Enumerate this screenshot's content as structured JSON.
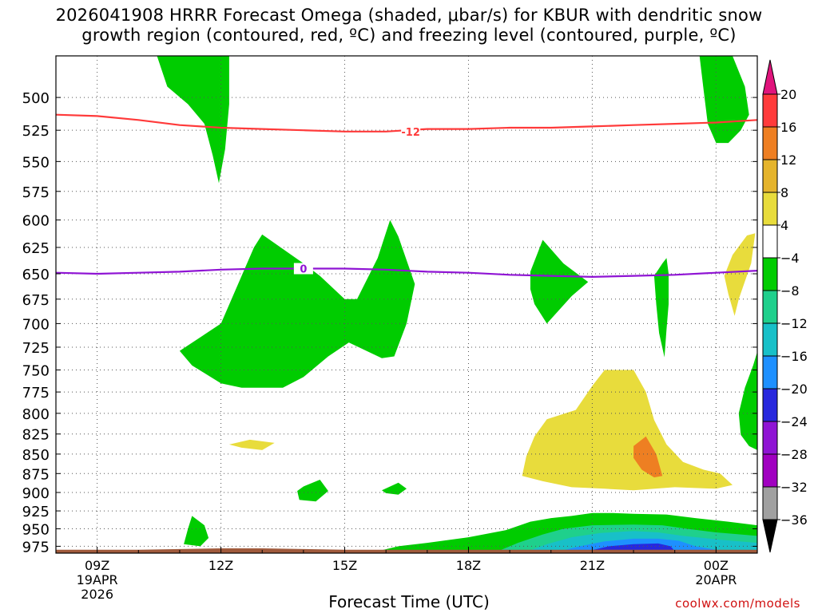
{
  "title": {
    "line1": "2026041908 HRRR Forecast Omega (shaded, μbar/s) for KBUR with dendritic snow",
    "line2": "growth region (contoured, red, ºC) and freezing level (contoured, purple, ºC)"
  },
  "credit": "coolwx.com/models",
  "chart_data": {
    "type": "heatmap",
    "xlabel": "Forecast Time (UTC)",
    "ylabel": "",
    "xlim": [
      8,
      25
    ],
    "ylim": [
      985,
      470
    ],
    "x_ticks": [
      {
        "x": 9,
        "lines": [
          "09Z",
          "19APR",
          "2026"
        ]
      },
      {
        "x": 12,
        "lines": [
          "12Z"
        ]
      },
      {
        "x": 15,
        "lines": [
          "15Z"
        ]
      },
      {
        "x": 18,
        "lines": [
          "18Z"
        ]
      },
      {
        "x": 21,
        "lines": [
          "21Z"
        ]
      },
      {
        "x": 24,
        "lines": [
          "00Z",
          "20APR"
        ]
      }
    ],
    "y_ticks": [
      500,
      525,
      550,
      575,
      600,
      625,
      650,
      675,
      700,
      725,
      750,
      775,
      800,
      825,
      850,
      875,
      900,
      925,
      950,
      975
    ],
    "grid": "dotted",
    "colorbar": {
      "labels": [
        "20",
        "16",
        "12",
        "8",
        "4",
        "−4",
        "−8",
        "−12",
        "−16",
        "−20",
        "−24",
        "−28",
        "−32",
        "−36"
      ],
      "bands": [
        {
          "range": [
            16,
            20
          ],
          "color": "#ff3a3a"
        },
        {
          "range": [
            12,
            16
          ],
          "color": "#ee7f22"
        },
        {
          "range": [
            8,
            12
          ],
          "color": "#e5b42c"
        },
        {
          "range": [
            4,
            8
          ],
          "color": "#e8dc3c"
        },
        {
          "range": [
            -4,
            4
          ],
          "color": "#ffffff"
        },
        {
          "range": [
            -8,
            -4
          ],
          "color": "#00cc00"
        },
        {
          "range": [
            -12,
            -8
          ],
          "color": "#1fd08c"
        },
        {
          "range": [
            -16,
            -12
          ],
          "color": "#18c0c8"
        },
        {
          "range": [
            -20,
            -16
          ],
          "color": "#1e90ff"
        },
        {
          "range": [
            -24,
            -20
          ],
          "color": "#2828dd"
        },
        {
          "range": [
            -28,
            -24
          ],
          "color": "#8f14d4"
        },
        {
          "range": [
            -32,
            -28
          ],
          "color": "#a000c0"
        },
        {
          "range": [
            -36,
            -32
          ],
          "color": "#a0a0a0"
        }
      ],
      "top_arrow_color": "#e0147c",
      "bottom_arrow_color": "#000000"
    },
    "contours": [
      {
        "name": "dendritic",
        "label": "-12",
        "label_at": [
          16.6,
          526
        ],
        "color": "#ff3a3a",
        "x": [
          8,
          9,
          10,
          11,
          12,
          13,
          14,
          15,
          16,
          17,
          18,
          19,
          20,
          21,
          22,
          23,
          24,
          25
        ],
        "y": [
          513,
          514,
          517,
          521,
          523,
          524,
          525,
          526,
          526,
          524,
          524,
          523,
          523,
          522,
          521,
          520,
          519,
          517
        ]
      },
      {
        "name": "freezing",
        "label": "0",
        "label_at": [
          14,
          645
        ],
        "color": "#8f14d4",
        "x": [
          8,
          9,
          10,
          11,
          12,
          13,
          14,
          15,
          16,
          17,
          18,
          19,
          20,
          21,
          22,
          23,
          24,
          25
        ],
        "y": [
          649,
          650,
          649,
          648,
          646,
          645,
          645,
          645,
          646,
          648,
          649,
          651,
          652,
          653,
          652,
          651,
          649,
          647
        ]
      }
    ],
    "regions": [
      {
        "color": "#00cc00",
        "points": [
          [
            10.45,
            470
          ],
          [
            10.7,
            492
          ],
          [
            11.2,
            505
          ],
          [
            11.6,
            520
          ],
          [
            11.8,
            545
          ],
          [
            11.95,
            568
          ],
          [
            12.1,
            540
          ],
          [
            12.2,
            505
          ],
          [
            12.2,
            470
          ]
        ]
      },
      {
        "color": "#00cc00",
        "points": [
          [
            24.4,
            470
          ],
          [
            24.7,
            492
          ],
          [
            24.8,
            513
          ],
          [
            24.6,
            525
          ],
          [
            24.3,
            535
          ],
          [
            24,
            535
          ],
          [
            23.8,
            520
          ],
          [
            23.7,
            495
          ],
          [
            23.6,
            470
          ]
        ]
      },
      {
        "color": "#00cc00",
        "points": [
          [
            11,
            729
          ],
          [
            12,
            700
          ],
          [
            12.8,
            625
          ],
          [
            13,
            613
          ],
          [
            14,
            640
          ],
          [
            14.4,
            652
          ],
          [
            15,
            675
          ],
          [
            15.3,
            675
          ],
          [
            15.8,
            635
          ],
          [
            16.1,
            600
          ],
          [
            16.3,
            615
          ],
          [
            16.7,
            660
          ],
          [
            16.5,
            700
          ],
          [
            16.2,
            735
          ],
          [
            15.9,
            737
          ],
          [
            15.1,
            720
          ],
          [
            14.6,
            735
          ],
          [
            14,
            758
          ],
          [
            13.5,
            770
          ],
          [
            12.5,
            770
          ],
          [
            12,
            765
          ],
          [
            11.3,
            745
          ]
        ]
      },
      {
        "color": "#00cc00",
        "points": [
          [
            19.8,
            618
          ],
          [
            20.3,
            640
          ],
          [
            20.9,
            658
          ],
          [
            20.5,
            672
          ],
          [
            19.9,
            700
          ],
          [
            19.6,
            680
          ],
          [
            19.5,
            665
          ],
          [
            19.5,
            648
          ]
        ]
      },
      {
        "color": "#00cc00",
        "points": [
          [
            22.7,
            640
          ],
          [
            22.8,
            635
          ],
          [
            22.85,
            650
          ],
          [
            22.85,
            680
          ],
          [
            22.8,
            706
          ],
          [
            22.75,
            736
          ],
          [
            22.62,
            710
          ],
          [
            22.55,
            680
          ],
          [
            22.5,
            652
          ]
        ]
      },
      {
        "color": "#00cc00",
        "points": [
          [
            25,
            730
          ],
          [
            24.9,
            745
          ],
          [
            24.7,
            770
          ],
          [
            24.55,
            800
          ],
          [
            24.6,
            826
          ],
          [
            24.8,
            840
          ],
          [
            25,
            845
          ]
        ]
      },
      {
        "color": "#00cc00",
        "points": [
          [
            14,
            892
          ],
          [
            14.4,
            883
          ],
          [
            14.6,
            898
          ],
          [
            14.3,
            912
          ],
          [
            13.9,
            910
          ],
          [
            13.85,
            898
          ]
        ]
      },
      {
        "color": "#00cc00",
        "points": [
          [
            15.9,
            897
          ],
          [
            16.3,
            887
          ],
          [
            16.5,
            895
          ],
          [
            16.3,
            903
          ],
          [
            16,
            901
          ]
        ]
      },
      {
        "color": "#00cc00",
        "points": [
          [
            11.3,
            932
          ],
          [
            11.6,
            945
          ],
          [
            11.7,
            963
          ],
          [
            11.5,
            975
          ],
          [
            11.1,
            972
          ],
          [
            11.2,
            950
          ]
        ]
      },
      {
        "color": "#00cc00",
        "points": [
          [
            8,
            985
          ],
          [
            15.6,
            985
          ],
          [
            16.3,
            975
          ],
          [
            17,
            970
          ],
          [
            18,
            962
          ],
          [
            18.9,
            952
          ],
          [
            19.5,
            940
          ],
          [
            20,
            935
          ],
          [
            20.5,
            932
          ],
          [
            21,
            928
          ],
          [
            21.5,
            928
          ],
          [
            22,
            929
          ],
          [
            22.8,
            930
          ],
          [
            23.5,
            935
          ],
          [
            24.3,
            940
          ],
          [
            25,
            945
          ],
          [
            25,
            985
          ]
        ]
      },
      {
        "color": "#1fd08c",
        "points": [
          [
            18.6,
            985
          ],
          [
            19.2,
            970
          ],
          [
            19.8,
            958
          ],
          [
            20.3,
            950
          ],
          [
            21,
            945
          ],
          [
            22,
            944
          ],
          [
            22.7,
            945
          ],
          [
            23.3,
            950
          ],
          [
            24,
            955
          ],
          [
            25,
            960
          ],
          [
            25,
            985
          ]
        ]
      },
      {
        "color": "#18c0c8",
        "points": [
          [
            19.3,
            985
          ],
          [
            19.9,
            972
          ],
          [
            20.5,
            962
          ],
          [
            21.2,
            956
          ],
          [
            22,
            953
          ],
          [
            22.6,
            955
          ],
          [
            23.2,
            960
          ],
          [
            24,
            965
          ],
          [
            25,
            970
          ],
          [
            25,
            985
          ]
        ]
      },
      {
        "color": "#1e90ff",
        "points": [
          [
            20,
            985
          ],
          [
            20.7,
            975
          ],
          [
            21.3,
            968
          ],
          [
            22,
            964
          ],
          [
            22.6,
            964
          ],
          [
            23.1,
            967
          ],
          [
            23.5,
            975
          ],
          [
            24,
            980
          ],
          [
            24,
            985
          ]
        ]
      },
      {
        "color": "#2828dd",
        "points": [
          [
            20.9,
            982
          ],
          [
            21.4,
            975
          ],
          [
            22,
            972
          ],
          [
            22.6,
            971
          ],
          [
            22.9,
            975
          ],
          [
            23,
            982
          ]
        ]
      },
      {
        "color": "#8f14d4",
        "points": [
          [
            22.2,
            983
          ],
          [
            22.5,
            980
          ],
          [
            22.8,
            983
          ]
        ]
      },
      {
        "color": "#e8dc3c",
        "points": [
          [
            19.9,
            807
          ],
          [
            20.6,
            796
          ],
          [
            21,
            768
          ],
          [
            21.3,
            750
          ],
          [
            22,
            750
          ],
          [
            22.3,
            775
          ],
          [
            22.5,
            808
          ],
          [
            22.8,
            838
          ],
          [
            23.2,
            860
          ],
          [
            23.7,
            870
          ],
          [
            24.1,
            875
          ],
          [
            24.4,
            890
          ],
          [
            24,
            895
          ],
          [
            23,
            893
          ],
          [
            22,
            897
          ],
          [
            21.3,
            895
          ],
          [
            20.5,
            893
          ],
          [
            19.8,
            885
          ],
          [
            19.3,
            878
          ],
          [
            19.4,
            853
          ],
          [
            19.6,
            828
          ]
        ]
      },
      {
        "color": "#ee7f22",
        "points": [
          [
            22.3,
            828
          ],
          [
            22.55,
            850
          ],
          [
            22.7,
            878
          ],
          [
            22.5,
            880
          ],
          [
            22.2,
            870
          ],
          [
            22.0,
            855
          ],
          [
            22.0,
            840
          ]
        ]
      },
      {
        "color": "#e8dc3c",
        "points": [
          [
            12.2,
            838
          ],
          [
            12.7,
            832
          ],
          [
            13.3,
            836
          ],
          [
            13,
            845
          ],
          [
            12.5,
            842
          ]
        ]
      },
      {
        "color": "#e8dc3c",
        "points": [
          [
            24.75,
            614
          ],
          [
            24.95,
            612
          ],
          [
            24.85,
            640
          ],
          [
            24.55,
            675
          ],
          [
            24.45,
            692
          ],
          [
            24.3,
            670
          ],
          [
            24.2,
            652
          ],
          [
            24.4,
            632
          ]
        ]
      },
      {
        "color": "#e8dc3c",
        "points": [
          [
            12.7,
            985
          ],
          [
            13.1,
            982
          ],
          [
            13.6,
            982
          ],
          [
            14.1,
            985
          ]
        ]
      },
      {
        "color": "#a05a3c",
        "points": [
          [
            8,
            980
          ],
          [
            9,
            980
          ],
          [
            10,
            980
          ],
          [
            11,
            979
          ],
          [
            12,
            978
          ],
          [
            13,
            978
          ],
          [
            14,
            979
          ],
          [
            15,
            980
          ],
          [
            16,
            980
          ],
          [
            17,
            980
          ],
          [
            18,
            980
          ],
          [
            19,
            980
          ],
          [
            20,
            980
          ],
          [
            21,
            980
          ],
          [
            22,
            980
          ],
          [
            23,
            980
          ],
          [
            24,
            980
          ],
          [
            25,
            980
          ],
          [
            25,
            985
          ],
          [
            8,
            985
          ]
        ]
      }
    ]
  }
}
